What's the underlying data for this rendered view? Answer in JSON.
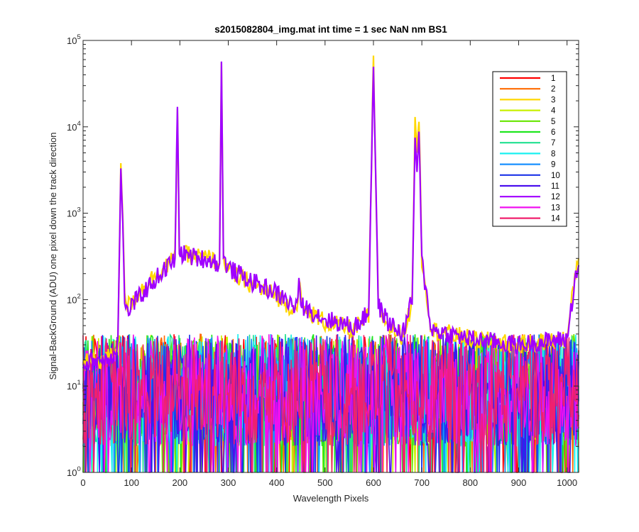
{
  "chart_data": {
    "type": "line",
    "title": "s2015082804_img.mat int time = 1 sec  NaN nm BS1",
    "xlabel": "Wavelength Pixels",
    "ylabel": "Signal-BackGround (ADU) one pixel down the track direction",
    "xlim": [
      0,
      1024
    ],
    "ylim": [
      1,
      100000
    ],
    "yscale": "log",
    "grid": false,
    "legend_position": "top-right",
    "x_ticks": [
      {
        "value": 0,
        "label": "0"
      },
      {
        "value": 100,
        "label": "100"
      },
      {
        "value": 200,
        "label": "200"
      },
      {
        "value": 300,
        "label": "300"
      },
      {
        "value": 400,
        "label": "400"
      },
      {
        "value": 500,
        "label": "500"
      },
      {
        "value": 600,
        "label": "600"
      },
      {
        "value": 700,
        "label": "700"
      },
      {
        "value": 800,
        "label": "800"
      },
      {
        "value": 900,
        "label": "900"
      },
      {
        "value": 1000,
        "label": "1000"
      }
    ],
    "y_ticks": [
      {
        "value": 1,
        "base": "10",
        "exp": "0"
      },
      {
        "value": 10,
        "base": "10",
        "exp": "1"
      },
      {
        "value": 100,
        "base": "10",
        "exp": "2"
      },
      {
        "value": 1000,
        "base": "10",
        "exp": "3"
      },
      {
        "value": 10000,
        "base": "10",
        "exp": "4"
      },
      {
        "value": 100000,
        "base": "10",
        "exp": "5"
      }
    ],
    "background_noise": {
      "typical_range": [
        2,
        40
      ],
      "x_range": [
        0,
        1024
      ]
    },
    "signal_series": [
      {
        "name": "3",
        "color": "#ffd700",
        "points": [
          [
            0,
            18
          ],
          [
            60,
            22
          ],
          [
            72,
            32
          ],
          [
            78,
            3800
          ],
          [
            82,
            900
          ],
          [
            86,
            120
          ],
          [
            90,
            80
          ],
          [
            100,
            95
          ],
          [
            130,
            150
          ],
          [
            160,
            220
          ],
          [
            190,
            300
          ],
          [
            195,
            16000
          ],
          [
            199,
            400
          ],
          [
            205,
            330
          ],
          [
            230,
            320
          ],
          [
            260,
            300
          ],
          [
            282,
            270
          ],
          [
            286,
            56000
          ],
          [
            290,
            300
          ],
          [
            300,
            220
          ],
          [
            320,
            180
          ],
          [
            350,
            150
          ],
          [
            400,
            110
          ],
          [
            440,
            75
          ],
          [
            446,
            155
          ],
          [
            452,
            80
          ],
          [
            500,
            55
          ],
          [
            560,
            45
          ],
          [
            590,
            65
          ],
          [
            600,
            56000
          ],
          [
            610,
            80
          ],
          [
            630,
            50
          ],
          [
            660,
            38
          ],
          [
            680,
            90
          ],
          [
            686,
            13000
          ],
          [
            690,
            5000
          ],
          [
            694,
            14000
          ],
          [
            700,
            300
          ],
          [
            720,
            45
          ],
          [
            800,
            35
          ],
          [
            900,
            30
          ],
          [
            1000,
            35
          ],
          [
            1018,
            220
          ],
          [
            1024,
            300
          ]
        ]
      },
      {
        "name": "12",
        "color": "#a000ff",
        "points": [
          [
            0,
            18
          ],
          [
            60,
            22
          ],
          [
            72,
            32
          ],
          [
            78,
            3300
          ],
          [
            82,
            800
          ],
          [
            86,
            90
          ],
          [
            90,
            70
          ],
          [
            100,
            85
          ],
          [
            130,
            130
          ],
          [
            160,
            200
          ],
          [
            190,
            290
          ],
          [
            195,
            17000
          ],
          [
            199,
            400
          ],
          [
            205,
            340
          ],
          [
            230,
            310
          ],
          [
            260,
            290
          ],
          [
            282,
            260
          ],
          [
            286,
            57000
          ],
          [
            290,
            300
          ],
          [
            300,
            230
          ],
          [
            320,
            200
          ],
          [
            350,
            160
          ],
          [
            400,
            120
          ],
          [
            440,
            80
          ],
          [
            446,
            140
          ],
          [
            452,
            85
          ],
          [
            500,
            60
          ],
          [
            560,
            48
          ],
          [
            590,
            70
          ],
          [
            600,
            57000
          ],
          [
            610,
            85
          ],
          [
            630,
            55
          ],
          [
            660,
            40
          ],
          [
            680,
            100
          ],
          [
            686,
            7500
          ],
          [
            690,
            3000
          ],
          [
            694,
            8800
          ],
          [
            700,
            280
          ],
          [
            720,
            45
          ],
          [
            800,
            35
          ],
          [
            900,
            30
          ],
          [
            1000,
            35
          ],
          [
            1018,
            200
          ],
          [
            1024,
            250
          ]
        ]
      }
    ],
    "legend": [
      {
        "label": "1",
        "color": "#ff0000"
      },
      {
        "label": "2",
        "color": "#ff6a00"
      },
      {
        "label": "3",
        "color": "#ffd700"
      },
      {
        "label": "4",
        "color": "#c8f000"
      },
      {
        "label": "5",
        "color": "#66e600"
      },
      {
        "label": "6",
        "color": "#1fe61f"
      },
      {
        "label": "7",
        "color": "#20e090"
      },
      {
        "label": "8",
        "color": "#19f0f0"
      },
      {
        "label": "9",
        "color": "#1890ff"
      },
      {
        "label": "10",
        "color": "#1c34e8"
      },
      {
        "label": "11",
        "color": "#4a10ee"
      },
      {
        "label": "12",
        "color": "#a000ff"
      },
      {
        "label": "13",
        "color": "#f010f0"
      },
      {
        "label": "14",
        "color": "#f0206e"
      }
    ]
  }
}
